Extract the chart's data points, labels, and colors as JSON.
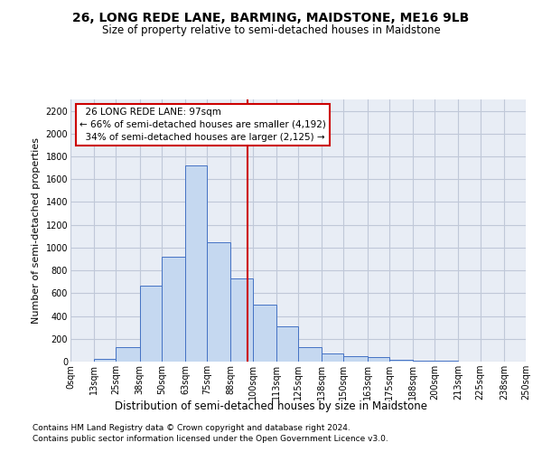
{
  "title": "26, LONG REDE LANE, BARMING, MAIDSTONE, ME16 9LB",
  "subtitle": "Size of property relative to semi-detached houses in Maidstone",
  "xlabel": "Distribution of semi-detached houses by size in Maidstone",
  "ylabel": "Number of semi-detached properties",
  "footer_line1": "Contains HM Land Registry data © Crown copyright and database right 2024.",
  "footer_line2": "Contains public sector information licensed under the Open Government Licence v3.0.",
  "property_label": "26 LONG REDE LANE: 97sqm",
  "pct_smaller": 66,
  "count_smaller": 4192,
  "pct_larger": 34,
  "count_larger": 2125,
  "bin_edges": [
    0,
    13,
    25,
    38,
    50,
    63,
    75,
    88,
    100,
    113,
    125,
    138,
    150,
    163,
    175,
    188,
    200,
    213,
    225,
    238,
    250
  ],
  "bin_labels": [
    "0sqm",
    "13sqm",
    "25sqm",
    "38sqm",
    "50sqm",
    "63sqm",
    "75sqm",
    "88sqm",
    "100sqm",
    "113sqm",
    "125sqm",
    "138sqm",
    "150sqm",
    "163sqm",
    "175sqm",
    "188sqm",
    "200sqm",
    "213sqm",
    "225sqm",
    "238sqm",
    "250sqm"
  ],
  "bar_heights": [
    0,
    25,
    125,
    665,
    920,
    1725,
    1050,
    730,
    500,
    310,
    125,
    70,
    50,
    40,
    15,
    10,
    5,
    0,
    0,
    0
  ],
  "bar_color": "#c5d8f0",
  "bar_edge_color": "#4472c4",
  "vline_color": "#cc0000",
  "vline_x": 97,
  "annotation_box_color": "#cc0000",
  "ylim": [
    0,
    2300
  ],
  "yticks": [
    0,
    200,
    400,
    600,
    800,
    1000,
    1200,
    1400,
    1600,
    1800,
    2000,
    2200
  ],
  "grid_color": "#c0c8d8",
  "bg_color": "#e8edf5",
  "title_fontsize": 10,
  "subtitle_fontsize": 8.5,
  "ylabel_fontsize": 8,
  "xlabel_fontsize": 8.5,
  "tick_fontsize": 7,
  "ann_fontsize": 7.5,
  "footer_fontsize": 6.5
}
